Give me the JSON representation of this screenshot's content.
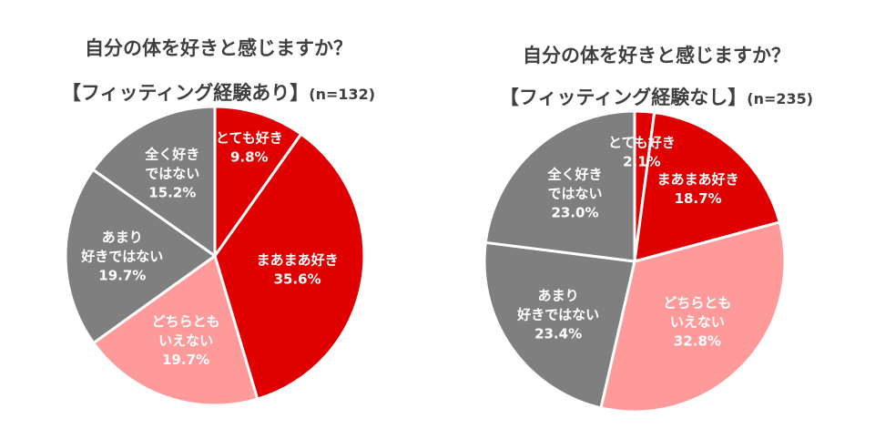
{
  "charts": [
    {
      "title_line1": "自分の体を好きと感じますか？",
      "title_line2": "【フィッティング経験あり】",
      "n_label": "(n=132)"
    },
    {
      "title_line1": "自分の体を好きと感じますか？",
      "title_line2": "【フィッティング経験なし】",
      "n_label": "(n=235)"
    }
  ],
  "colors": {
    "dark_red": "#e00000",
    "light_red": "#ff9a9a",
    "gray": "#7f7f7f"
  },
  "chart_data": [
    {
      "type": "pie",
      "title": "自分の体を好きと感じますか？【フィッティング経験あり】(n=132)",
      "slices": [
        {
          "label": [
            "とても好き"
          ],
          "value": 9.8,
          "value_label": "9.8%",
          "color": "#e00000"
        },
        {
          "label": [
            "まあまあ好き"
          ],
          "value": 35.6,
          "value_label": "35.6%",
          "color": "#e00000"
        },
        {
          "label": [
            "どちらとも",
            "いえない"
          ],
          "value": 19.7,
          "value_label": "19.7%",
          "color": "#ff9a9a"
        },
        {
          "label": [
            "あまり",
            "好きではない"
          ],
          "value": 19.7,
          "value_label": "19.7%",
          "color": "#7f7f7f"
        },
        {
          "label": [
            "全く好き",
            "ではない"
          ],
          "value": 15.2,
          "value_label": "15.2%",
          "color": "#7f7f7f"
        }
      ]
    },
    {
      "type": "pie",
      "title": "自分の体を好きと感じますか？【フィッティング経験なし】(n=235)",
      "slices": [
        {
          "label": [
            "とても好き"
          ],
          "value": 2.1,
          "value_label": "2.1%",
          "color": "#e00000"
        },
        {
          "label": [
            "まあまあ好き"
          ],
          "value": 18.7,
          "value_label": "18.7%",
          "color": "#e00000"
        },
        {
          "label": [
            "どちらとも",
            "いえない"
          ],
          "value": 32.8,
          "value_label": "32.8%",
          "color": "#ff9a9a"
        },
        {
          "label": [
            "あまり",
            "好きではない"
          ],
          "value": 23.4,
          "value_label": "23.4%",
          "color": "#7f7f7f"
        },
        {
          "label": [
            "全く好き",
            "ではない"
          ],
          "value": 23.0,
          "value_label": "23.0%",
          "color": "#7f7f7f"
        }
      ]
    }
  ]
}
